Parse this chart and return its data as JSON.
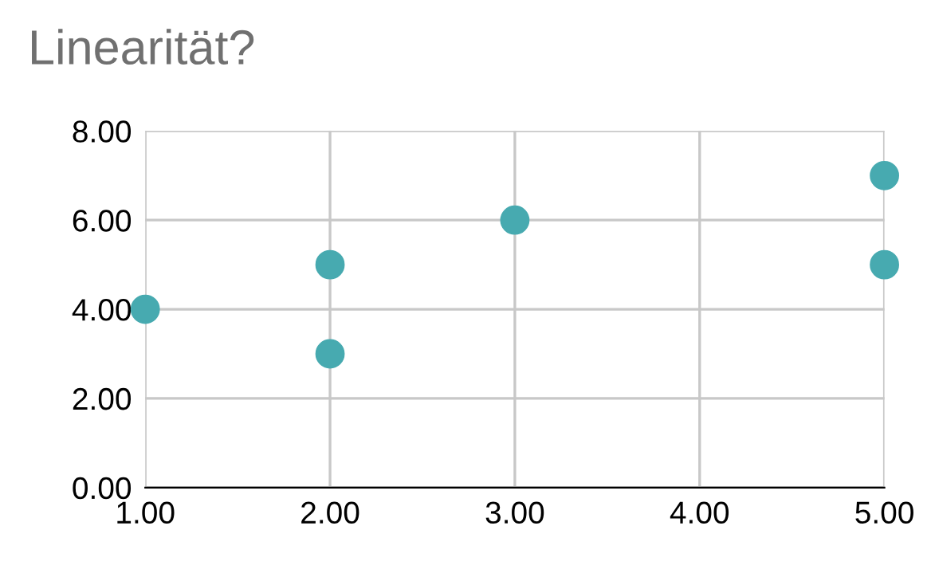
{
  "chart_data": {
    "type": "scatter",
    "title": "Linearität?",
    "series": [
      {
        "color": "#47aab0",
        "x": [
          1,
          2,
          2,
          3,
          5,
          5
        ],
        "values": [
          4,
          5,
          3,
          6,
          7,
          5
        ]
      }
    ],
    "xlim": [
      1,
      5
    ],
    "xticks": [
      {
        "value": 1,
        "label": "1.00"
      },
      {
        "value": 2,
        "label": "2.00"
      },
      {
        "value": 3,
        "label": "3.00"
      },
      {
        "value": 4,
        "label": "4.00"
      },
      {
        "value": 5,
        "label": "5.00"
      }
    ],
    "ylim": [
      0,
      8
    ],
    "yticks": [
      {
        "value": 0,
        "label": "0.00"
      },
      {
        "value": 2,
        "label": "2.00"
      },
      {
        "value": 4,
        "label": "4.00"
      },
      {
        "value": 6,
        "label": "6.00"
      },
      {
        "value": 8,
        "label": "8.00"
      }
    ],
    "grid": true,
    "marker": "circle",
    "legend": false
  }
}
